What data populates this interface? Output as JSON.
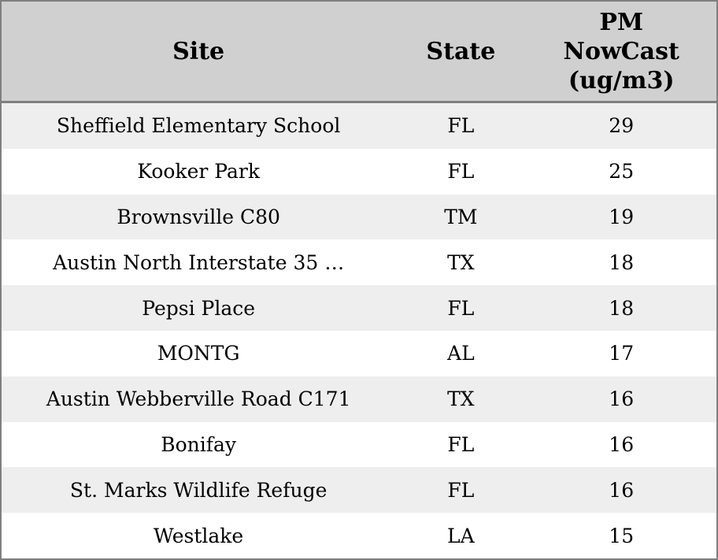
{
  "chart_data": {
    "type": "table",
    "title": "",
    "columns": [
      "Site",
      "State",
      "PM NowCast (ug/m3)"
    ],
    "rows": [
      [
        "Sheffield Elementary School",
        "FL",
        29
      ],
      [
        "Kooker Park",
        "FL",
        25
      ],
      [
        "Brownsville C80",
        "TM",
        19
      ],
      [
        "Austin North Interstate 35 …",
        "TX",
        18
      ],
      [
        "Pepsi Place",
        "FL",
        18
      ],
      [
        "MONTG",
        "AL",
        17
      ],
      [
        "Austin Webberville Road C171",
        "TX",
        16
      ],
      [
        "Bonifay",
        "FL",
        16
      ],
      [
        "St. Marks Wildlife Refuge",
        "FL",
        16
      ],
      [
        "Westlake",
        "LA",
        15
      ]
    ],
    "layout_hints": {
      "zebra_striping": true,
      "all_cells_centered": true,
      "vertical_gridlines": false
    }
  },
  "header": {
    "site_label": "Site",
    "state_label": "State",
    "pm_label_lines": [
      "PM",
      "NowCast",
      "(ug/m3)"
    ]
  },
  "colors": {
    "header_bg": "#d0d0d0",
    "row_stripe_bg": "#eeeeee",
    "row_bg": "#ffffff",
    "border": "#7f7f7f",
    "text": "#000000"
  }
}
